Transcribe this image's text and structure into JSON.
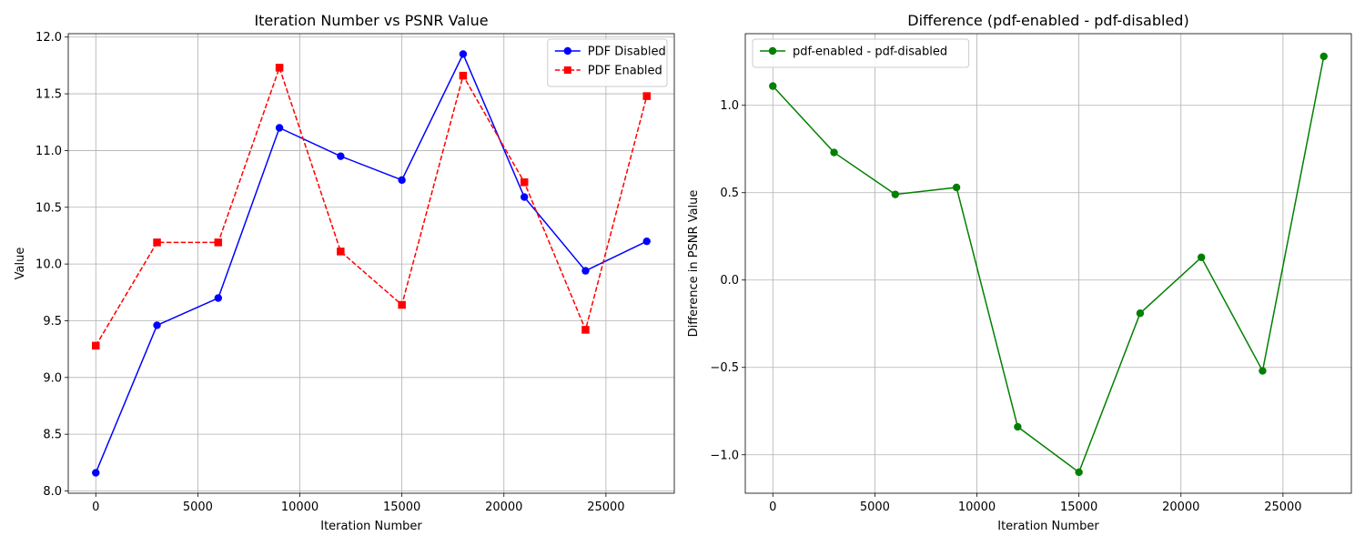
{
  "chart_data": [
    {
      "type": "line",
      "title": "Iteration Number vs PSNR Value",
      "xlabel": "Iteration Number",
      "ylabel": "Value",
      "x": [
        0,
        3000,
        6000,
        9000,
        12000,
        15000,
        18000,
        21000,
        24000,
        27000
      ],
      "xlim": [
        -1350,
        28350
      ],
      "ylim": [
        7.98,
        12.03
      ],
      "xticks": [
        0,
        5000,
        10000,
        15000,
        20000,
        25000
      ],
      "yticks": [
        8.0,
        8.5,
        9.0,
        9.5,
        10.0,
        10.5,
        11.0,
        11.5,
        12.0
      ],
      "grid": true,
      "legend_position": "upper right",
      "series": [
        {
          "name": "PDF Disabled",
          "color": "#0000ff",
          "marker": "circle",
          "linestyle": "solid",
          "values": [
            8.16,
            9.46,
            9.7,
            11.2,
            10.95,
            10.74,
            11.85,
            10.59,
            9.94,
            10.2
          ]
        },
        {
          "name": "PDF Enabled",
          "color": "#ff0000",
          "marker": "square",
          "linestyle": "dashed",
          "values": [
            9.28,
            10.19,
            10.19,
            11.73,
            10.11,
            9.64,
            11.66,
            10.72,
            9.42,
            11.48
          ]
        }
      ]
    },
    {
      "type": "line",
      "title": "Difference (pdf-enabled - pdf-disabled)",
      "xlabel": "Iteration Number",
      "ylabel": "Difference in PSNR Value",
      "x": [
        0,
        3000,
        6000,
        9000,
        12000,
        15000,
        18000,
        21000,
        24000,
        27000
      ],
      "xlim": [
        -1350,
        28350
      ],
      "ylim": [
        -1.22,
        1.41
      ],
      "xticks": [
        0,
        5000,
        10000,
        15000,
        20000,
        25000
      ],
      "yticks": [
        -1.0,
        -0.5,
        0.0,
        0.5,
        1.0
      ],
      "grid": true,
      "legend_position": "upper left",
      "series": [
        {
          "name": "pdf-enabled - pdf-disabled",
          "color": "#008000",
          "marker": "circle",
          "linestyle": "solid",
          "values": [
            1.11,
            0.73,
            0.49,
            0.53,
            -0.84,
            -1.1,
            -0.19,
            0.13,
            -0.52,
            1.28
          ]
        }
      ]
    }
  ]
}
